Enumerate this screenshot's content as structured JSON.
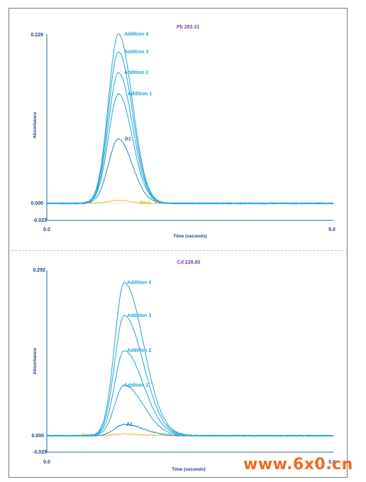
{
  "watermark": "www.6x0.cn",
  "chart_data": [
    {
      "type": "line",
      "title": "Pb 283.31",
      "xlabel": "Time (seconds)",
      "ylabel": "Absorbance",
      "xlim": [
        0.0,
        5.0
      ],
      "ylim": [
        -0.023,
        0.229
      ],
      "x_ticks": [
        "0.0",
        "5.0"
      ],
      "y_ticks": [
        "0.229",
        "0.000",
        "-0.023"
      ],
      "peak_time": 1.25,
      "series": [
        {
          "name": "Blank",
          "peak": 0.004,
          "color": "#f2b72e"
        },
        {
          "name": "B1",
          "peak": 0.087,
          "color": "#2b8fb8"
        },
        {
          "name": "Addition 1",
          "peak": 0.148,
          "color": "#29a8dc"
        },
        {
          "name": "Addition 2",
          "peak": 0.177,
          "color": "#29a8dc"
        },
        {
          "name": "Addition 3",
          "peak": 0.205,
          "color": "#29a8dc"
        },
        {
          "name": "Addition 4",
          "peak": 0.229,
          "color": "#29a8dc"
        }
      ]
    },
    {
      "type": "line",
      "title": "Cd 228.80",
      "xlabel": "Time (seconds)",
      "ylabel": "Absorbance",
      "xlim": [
        0.0,
        5.0
      ],
      "ylim": [
        -0.029,
        0.292
      ],
      "x_ticks": [
        "0.0",
        "5.0"
      ],
      "y_ticks": [
        "0.292",
        "0.000",
        "-0.029"
      ],
      "peak_time": 1.35,
      "series": [
        {
          "name": "Blank",
          "peak": 0.003,
          "color": "#f2b72e"
        },
        {
          "name": "A1",
          "peak": 0.02,
          "color": "#2b8fb8"
        },
        {
          "name": "Addition 1",
          "peak": 0.089,
          "color": "#29a8dc"
        },
        {
          "name": "Addition 2",
          "peak": 0.15,
          "color": "#29a8dc"
        },
        {
          "name": "Addition 3",
          "peak": 0.212,
          "color": "#29a8dc"
        },
        {
          "name": "Addition 4",
          "peak": 0.27,
          "color": "#29a8dc"
        }
      ]
    }
  ]
}
